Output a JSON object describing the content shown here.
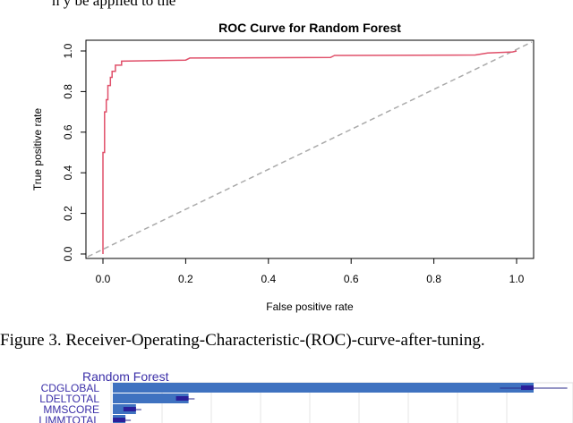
{
  "fragment_top": "n y   be applied to the",
  "caption": "Figure 3.  Receiver-Operating-Characteristic-(ROC)-curve-after-tuning.",
  "chart_data": [
    {
      "type": "line",
      "title": "ROC Curve for Random Forest",
      "xlabel": "False positive rate",
      "ylabel": "True positive rate",
      "xlim": [
        0,
        1
      ],
      "ylim": [
        0,
        1
      ],
      "xticks": [
        "0.0",
        "0.2",
        "0.4",
        "0.6",
        "0.8",
        "1.0"
      ],
      "yticks": [
        "0.0",
        "0.2",
        "0.4",
        "0.6",
        "0.8",
        "1.0"
      ],
      "grid": false,
      "line_color": "#e0506a",
      "diagonal_color": "#aaaaaa",
      "series": [
        {
          "x": [
            0.0,
            0.0,
            0.004,
            0.004,
            0.008,
            0.008,
            0.012,
            0.012,
            0.018,
            0.018,
            0.022,
            0.022,
            0.03,
            0.03,
            0.045,
            0.045,
            0.2,
            0.21,
            0.55,
            0.56,
            0.9,
            0.93,
            0.99,
            1.0
          ],
          "y": [
            0.0,
            0.5,
            0.5,
            0.7,
            0.7,
            0.76,
            0.76,
            0.83,
            0.83,
            0.87,
            0.87,
            0.9,
            0.9,
            0.93,
            0.93,
            0.95,
            0.955,
            0.965,
            0.968,
            0.978,
            0.98,
            0.99,
            0.995,
            1.0
          ]
        }
      ]
    },
    {
      "type": "bar",
      "title": "Random Forest",
      "categories": [
        "CDGLOBAL",
        "LDELTOTAL",
        "MMSCORE",
        "LIMMTOTAL"
      ],
      "values": [
        1.0,
        0.18,
        0.055,
        0.03
      ],
      "bar_color": "#3f72c0"
    }
  ]
}
